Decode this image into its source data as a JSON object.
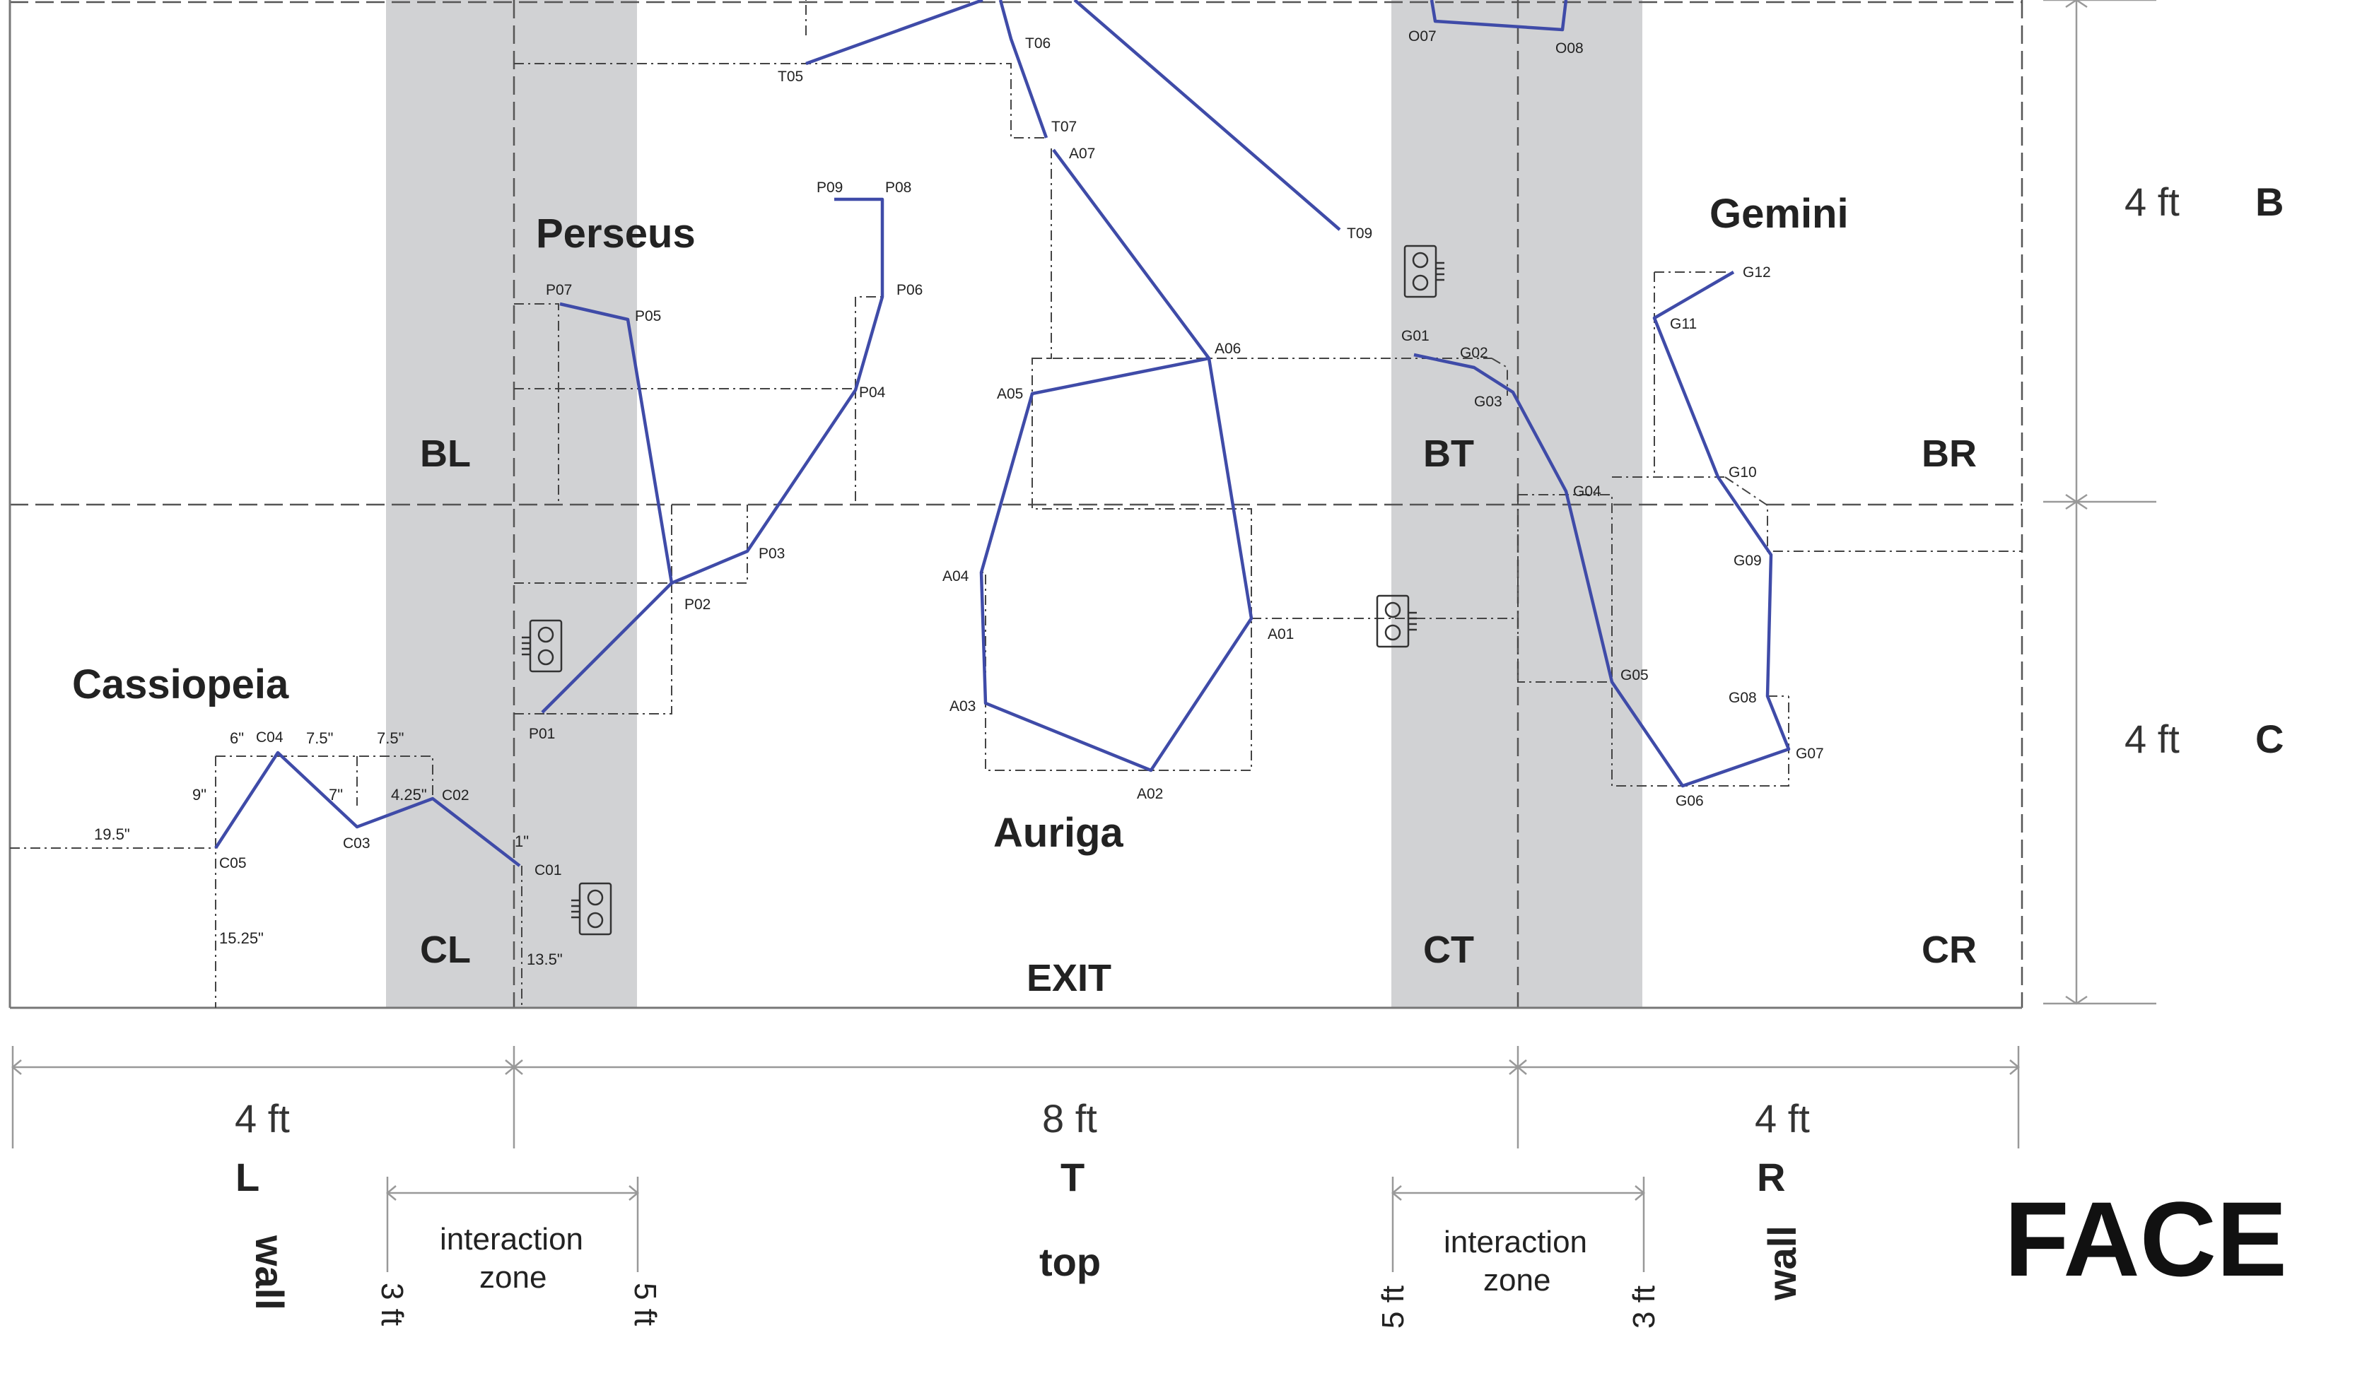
{
  "constellations": {
    "perseus": "Perseus",
    "cassiopeia": "Cassiopeia",
    "auriga": "Auriga",
    "gemini": "Gemini"
  },
  "zones": {
    "bl": "BL",
    "bt": "BT",
    "br": "BR",
    "cl": "CL",
    "ct": "CT",
    "cr": "CR"
  },
  "exit": "EXIT",
  "points": {
    "T05": "T05",
    "T06": "T06",
    "T07": "T07",
    "T09": "T09",
    "O07": "O07",
    "O08": "O08",
    "A01": "A01",
    "A02": "A02",
    "A03": "A03",
    "A04": "A04",
    "A05": "A05",
    "A06": "A06",
    "A07": "A07",
    "P01": "P01",
    "P02": "P02",
    "P03": "P03",
    "P04": "P04",
    "P05": "P05",
    "P06": "P06",
    "P07": "P07",
    "P08": "P08",
    "P09": "P09",
    "C01": "C01",
    "C02": "C02",
    "C03": "C03",
    "C04": "C04",
    "C05": "C05",
    "G01": "G01",
    "G02": "G02",
    "G03": "G03",
    "G04": "G04",
    "G05": "G05",
    "G06": "G06",
    "G07": "G07",
    "G08": "G08",
    "G09": "G09",
    "G10": "G10",
    "G11": "G11",
    "G12": "G12"
  },
  "cassiopeia_dims": {
    "d1": "6\"",
    "d2": "7.5\"",
    "d3": "7.5\"",
    "d4": "9\"",
    "d5": "7\"",
    "d6": "4.25\"",
    "d7": "19.5\"",
    "d8": "1\"",
    "d9": "15.25\"",
    "d10": "13.5\""
  },
  "bottom": {
    "seg_left": "4 ft",
    "seg_mid": "8 ft",
    "seg_right": "4 ft",
    "letter_left": "L",
    "letter_mid": "T",
    "letter_right": "R",
    "wall_left": "wall",
    "top_mid": "top",
    "wall_right": "wall",
    "iz_left_1": "interaction",
    "iz_left_2": "zone",
    "iz_right_1": "interaction",
    "iz_right_2": "zone",
    "ft3_left": "3 ft",
    "ft5_left": "5 ft",
    "ft5_right": "5 ft",
    "ft3_right": "3 ft",
    "face": "FACE"
  },
  "right": {
    "seg_top": "4 ft",
    "letter_top": "B",
    "seg_bottom": "4 ft",
    "letter_bottom": "C"
  },
  "colors": {
    "constellation_line": "#3f4ba8",
    "interaction_zone": "#d1d2d4",
    "dimension_line": "#999999",
    "guide_line": "#444444"
  },
  "sensor_icon": "sensor-icon"
}
